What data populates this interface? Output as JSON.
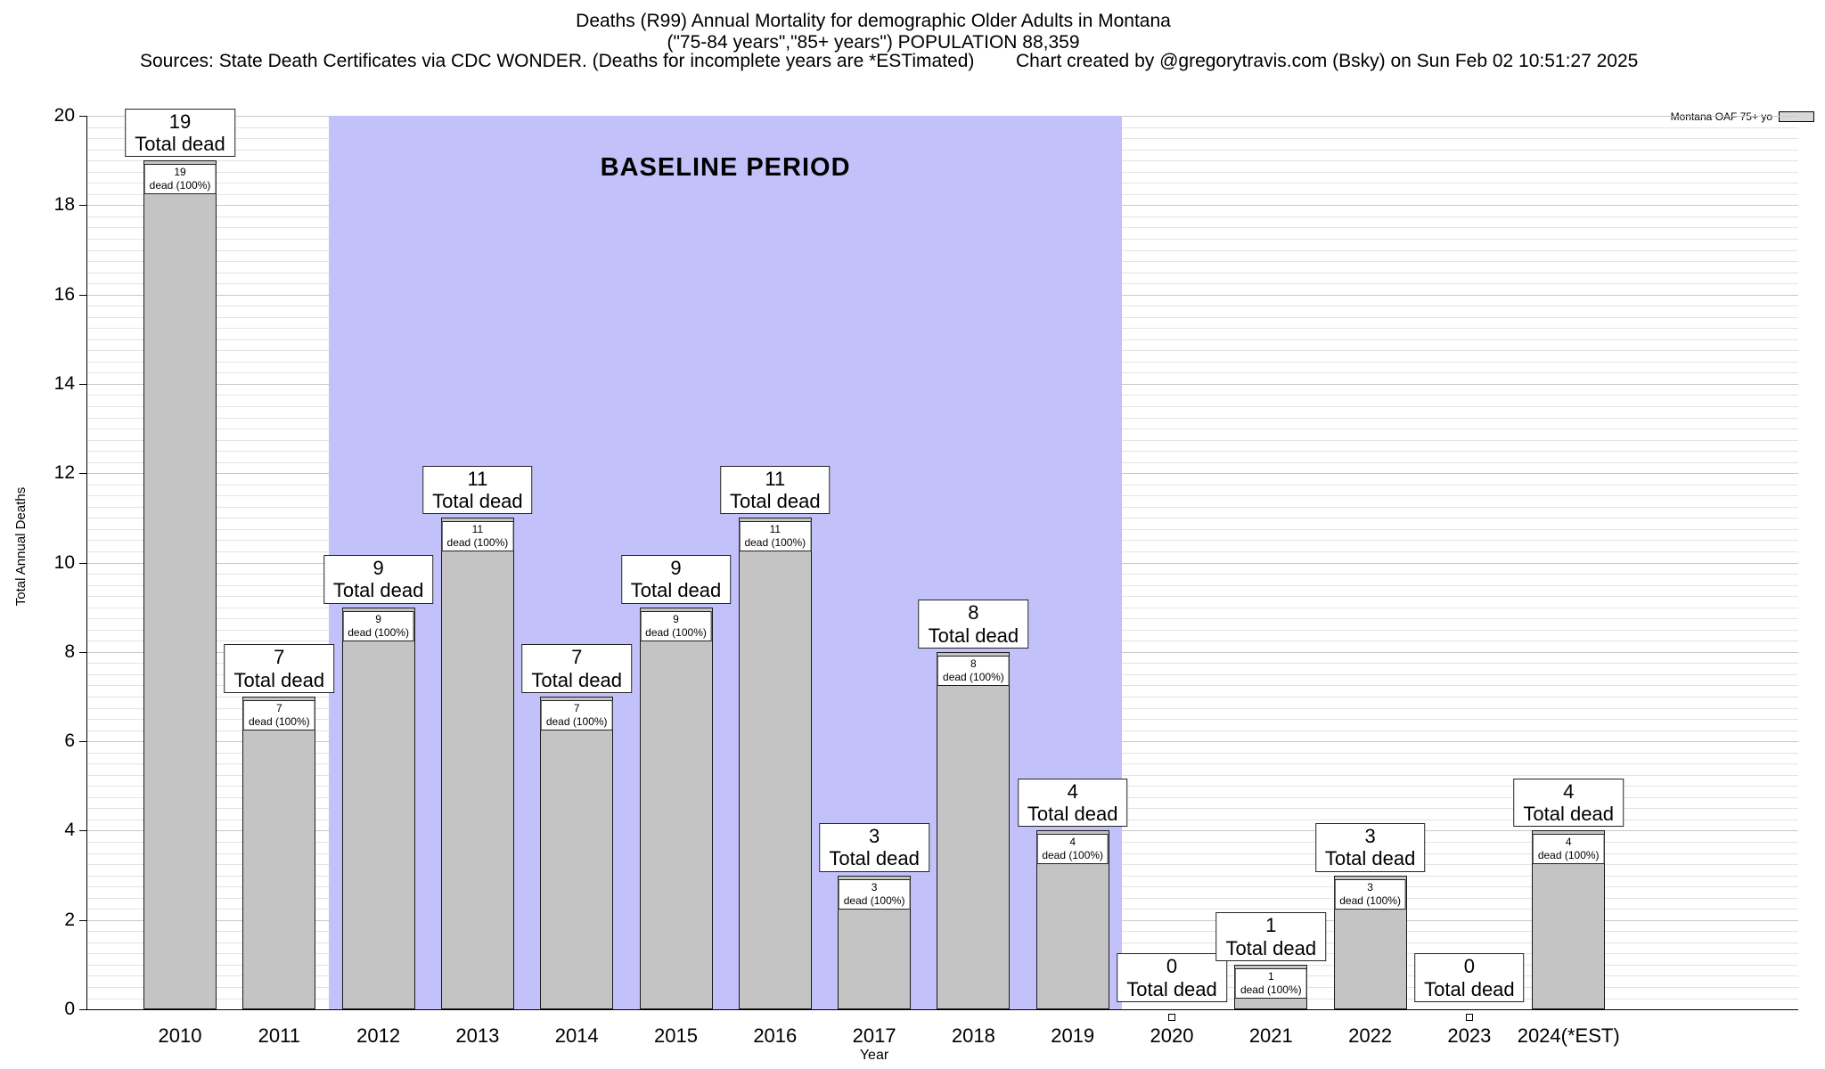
{
  "header": {
    "title_line1": "Deaths (R99) Annual Mortality for demographic Older Adults in Montana",
    "title_line2": "(\"75-84 years\",\"85+ years\") POPULATION 88,359",
    "sources": "Sources: State Death Certificates via CDC WONDER. (Deaths for incomplete years are *ESTimated)",
    "credit": "Chart created by @gregorytravis.com (Bsky) on Sun Feb 02 10:51:27 2025"
  },
  "legend": {
    "label": "Montana OAF 75+ yo"
  },
  "chart_data": {
    "type": "bar",
    "title": "Deaths (R99) Annual Mortality for demographic Older Adults in Montana",
    "subtitle": "(\"75-84 years\",\"85+ years\") POPULATION 88,359",
    "xlabel": "Year",
    "ylabel": "Total Annual Deaths",
    "ylim": [
      0,
      20
    ],
    "ytick_step": 2,
    "grid": "on",
    "legend_position": "top-right",
    "categories": [
      "2010",
      "2011",
      "2012",
      "2013",
      "2014",
      "2015",
      "2016",
      "2017",
      "2018",
      "2019",
      "2020",
      "2021",
      "2022",
      "2023",
      "2024(*EST)"
    ],
    "values": [
      19,
      7,
      9,
      11,
      7,
      9,
      11,
      3,
      8,
      4,
      0,
      1,
      3,
      0,
      4
    ],
    "bar_color": "#c4c4c4",
    "annotations": {
      "total_label_suffix": "Total dead",
      "pct_label_suffix": "dead (100%)"
    },
    "baseline": {
      "label": "BASELINE PERIOD",
      "start_year": "2012",
      "end_year": "2019",
      "start_index": 1.5,
      "end_index": 9.5,
      "color": "#c3c1f9"
    }
  }
}
